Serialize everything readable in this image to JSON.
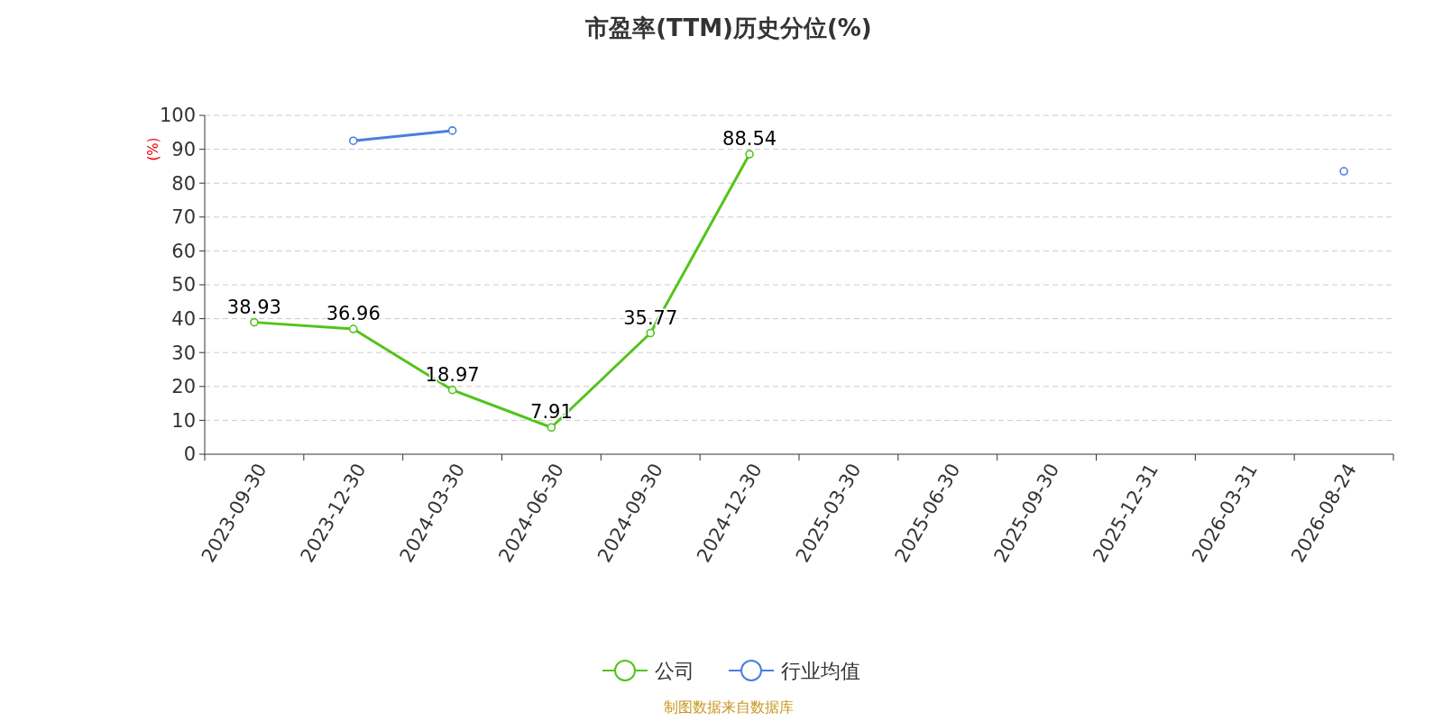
{
  "chart_data": {
    "type": "line",
    "title": "市盈率(TTM)历史分位(%)",
    "ylabel": "(%)",
    "categories": [
      "2023-09-30",
      "2023-12-30",
      "2024-03-30",
      "2024-06-30",
      "2024-09-30",
      "2024-12-30",
      "2025-03-30",
      "2025-06-30",
      "2025-09-30",
      "2025-12-31",
      "2026-03-31",
      "2026-08-24"
    ],
    "series": [
      {
        "name": "公司",
        "color": "#52c41a",
        "values": [
          38.93,
          36.96,
          18.97,
          7.91,
          35.77,
          88.54,
          null,
          null,
          null,
          null,
          null,
          null
        ],
        "value_labels": [
          "38.93",
          "36.96",
          "18.97",
          "7.91",
          "35.77",
          "88.54",
          null,
          null,
          null,
          null,
          null,
          null
        ]
      },
      {
        "name": "行业均值",
        "color": "#4a7ee0",
        "values": [
          null,
          92.5,
          95.5,
          null,
          null,
          null,
          null,
          null,
          null,
          null,
          null,
          83.5
        ]
      }
    ],
    "ylim": [
      0,
      100
    ],
    "yticks": [
      0,
      10,
      20,
      30,
      40,
      50,
      60,
      70,
      80,
      90,
      100
    ],
    "grid": "y",
    "legend": "bottom",
    "marker": "circle",
    "line_style": "solid",
    "annotations": [
      "制图数据来自数据库"
    ]
  }
}
